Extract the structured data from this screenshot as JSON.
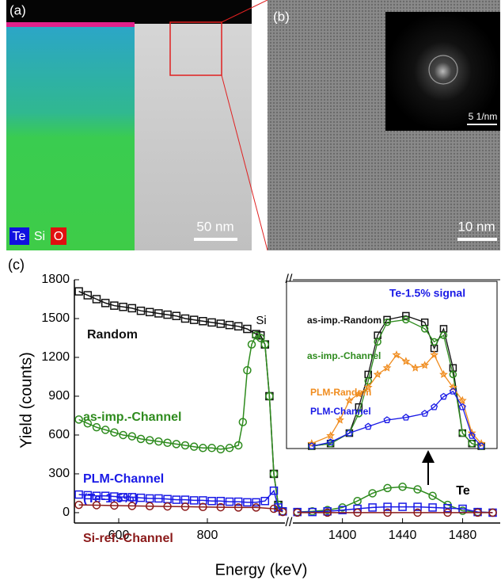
{
  "panels": {
    "a": {
      "label": "(a)",
      "legend": [
        "Te",
        "Si",
        "O"
      ],
      "scale_bar": "50 nm"
    },
    "b": {
      "label": "(b)",
      "scale_bar": "10 nm",
      "inset_scale_bar": "5 1/nm"
    }
  },
  "chart_data": {
    "type": "line",
    "panel_label": "(c)",
    "x_label": "Energy (keV)",
    "y_label": "Yield (counts)",
    "ylim": [
      -80,
      1800
    ],
    "yticks": [
      0,
      300,
      600,
      900,
      1200,
      1500,
      1800
    ],
    "x_segments": [
      {
        "xlim": [
          500,
          975
        ],
        "xticks": [
          600,
          800
        ]
      },
      {
        "xlim": [
          1367,
          1505
        ],
        "xticks": [
          1400,
          1440,
          1480
        ]
      }
    ],
    "annotations": {
      "si": "Si",
      "te": "Te",
      "plm_note": "(Te-1.5%)"
    },
    "series": [
      {
        "name": "Random",
        "color": "#111111",
        "marker": "square",
        "x": [
          510,
          530,
          550,
          570,
          590,
          610,
          630,
          650,
          670,
          690,
          710,
          730,
          750,
          770,
          790,
          810,
          830,
          850,
          870,
          890,
          910,
          920,
          930,
          940,
          950,
          960,
          970
        ],
        "values": [
          1710,
          1680,
          1650,
          1620,
          1600,
          1590,
          1580,
          1560,
          1550,
          1540,
          1530,
          1520,
          1500,
          1490,
          1480,
          1470,
          1460,
          1450,
          1440,
          1420,
          1380,
          1370,
          1300,
          900,
          300,
          60,
          10
        ]
      },
      {
        "name": "as-imp.-Channel",
        "color": "#2e8b1e",
        "marker": "circle",
        "x": [
          510,
          530,
          550,
          570,
          590,
          610,
          630,
          650,
          670,
          690,
          710,
          730,
          750,
          770,
          790,
          810,
          830,
          850,
          870,
          880,
          890,
          900,
          910,
          920,
          930,
          940,
          950,
          960,
          970,
          1370,
          1380,
          1390,
          1400,
          1410,
          1420,
          1430,
          1440,
          1450,
          1460,
          1470,
          1480,
          1490,
          1500
        ],
        "values": [
          720,
          690,
          660,
          640,
          620,
          600,
          590,
          570,
          560,
          550,
          540,
          530,
          520,
          510,
          500,
          500,
          490,
          500,
          520,
          700,
          1100,
          1300,
          1370,
          1350,
          1300,
          900,
          300,
          60,
          10,
          5,
          10,
          20,
          40,
          90,
          150,
          190,
          200,
          180,
          130,
          60,
          15,
          5,
          0
        ]
      },
      {
        "name": "PLM-Channel",
        "color": "#1a1ae6",
        "marker": "square",
        "x": [
          510,
          530,
          550,
          570,
          590,
          610,
          630,
          650,
          670,
          690,
          710,
          730,
          750,
          770,
          790,
          810,
          830,
          850,
          870,
          890,
          910,
          930,
          950,
          960,
          970,
          1370,
          1380,
          1390,
          1400,
          1410,
          1420,
          1430,
          1440,
          1450,
          1460,
          1470,
          1480,
          1490,
          1500
        ],
        "values": [
          140,
          135,
          130,
          130,
          125,
          120,
          120,
          115,
          110,
          110,
          105,
          100,
          100,
          95,
          95,
          90,
          90,
          85,
          85,
          80,
          80,
          90,
          170,
          40,
          10,
          5,
          5,
          10,
          20,
          30,
          40,
          45,
          45,
          45,
          40,
          35,
          30,
          5,
          0
        ]
      },
      {
        "name": "Si-ref.-Channel",
        "color": "#8b1a1a",
        "marker": "circle",
        "x": [
          510,
          550,
          590,
          630,
          670,
          710,
          750,
          790,
          830,
          870,
          910,
          950,
          970,
          1370,
          1390,
          1410,
          1430,
          1450,
          1470,
          1490,
          1500
        ],
        "values": [
          60,
          58,
          55,
          52,
          50,
          48,
          46,
          44,
          42,
          40,
          40,
          30,
          5,
          0,
          0,
          0,
          0,
          0,
          0,
          0,
          0
        ]
      }
    ],
    "inset": {
      "title": "Te-1.5% signal",
      "xlim": [
        1390,
        1495
      ],
      "ylim": [
        0,
        1.1
      ],
      "series": [
        {
          "name": "as-imp.-Random",
          "color": "#111111",
          "marker": "square",
          "x": [
            1400,
            1410,
            1420,
            1425,
            1430,
            1435,
            1440,
            1450,
            1460,
            1465,
            1470,
            1475,
            1480,
            1485,
            1490
          ],
          "values": [
            0,
            0.02,
            0.1,
            0.3,
            0.55,
            0.85,
            0.97,
            1.0,
            0.95,
            0.75,
            0.9,
            0.6,
            0.1,
            0.02,
            0
          ]
        },
        {
          "name": "as-imp.-Channel",
          "color": "#2e8b1e",
          "marker": "circle",
          "x": [
            1400,
            1410,
            1420,
            1425,
            1430,
            1435,
            1440,
            1450,
            1460,
            1465,
            1470,
            1475,
            1480,
            1485,
            1490
          ],
          "values": [
            0,
            0.02,
            0.1,
            0.25,
            0.5,
            0.8,
            0.95,
            0.97,
            0.9,
            0.8,
            0.85,
            0.55,
            0.1,
            0.02,
            0
          ]
        },
        {
          "name": "PLM-Random",
          "color": "#f08c1e",
          "marker": "star",
          "x": [
            1400,
            1410,
            1415,
            1420,
            1425,
            1430,
            1435,
            1440,
            1445,
            1450,
            1455,
            1460,
            1465,
            1470,
            1475,
            1480,
            1485,
            1490
          ],
          "values": [
            0.02,
            0.08,
            0.2,
            0.35,
            0.4,
            0.45,
            0.55,
            0.6,
            0.7,
            0.65,
            0.6,
            0.62,
            0.7,
            0.55,
            0.45,
            0.35,
            0.1,
            0.02
          ]
        },
        {
          "name": "PLM-Channel",
          "color": "#1a1ae6",
          "marker": "pentagon",
          "x": [
            1400,
            1410,
            1420,
            1430,
            1440,
            1450,
            1460,
            1465,
            1470,
            1475,
            1480,
            1485,
            1490
          ],
          "values": [
            0,
            0.03,
            0.1,
            0.15,
            0.2,
            0.22,
            0.25,
            0.3,
            0.38,
            0.42,
            0.3,
            0.08,
            0
          ]
        }
      ]
    }
  }
}
